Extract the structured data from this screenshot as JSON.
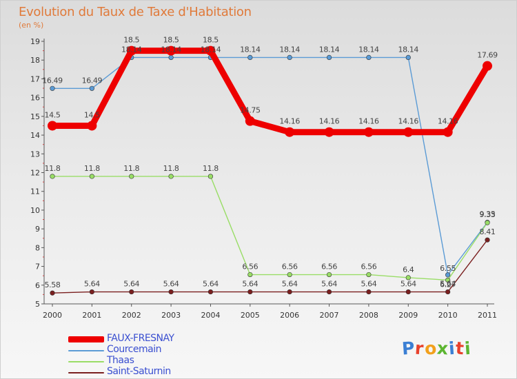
{
  "chart_data": {
    "type": "line",
    "title": "Evolution du Taux de Taxe d'Habitation",
    "subtitle": "(en %)",
    "xlabel": "",
    "ylabel": "",
    "ylim": [
      5,
      19
    ],
    "yticks": [
      "5",
      "6",
      "7",
      "8",
      "9",
      "10",
      "11",
      "12",
      "13",
      "14",
      "15",
      "16",
      "17",
      "18",
      "19"
    ],
    "x": [
      "2000",
      "2001",
      "2002",
      "2003",
      "2004",
      "2005",
      "2006",
      "2007",
      "2008",
      "2009",
      "2010",
      "2011"
    ],
    "grid": false,
    "legend_position": "bottom-left",
    "series": [
      {
        "name": "FAUX-FRESNAY",
        "color": "#ee0000",
        "values": [
          14.5,
          14.5,
          18.5,
          18.5,
          18.5,
          14.75,
          14.16,
          14.16,
          14.16,
          14.16,
          14.16,
          17.69
        ],
        "labels": [
          "14.5",
          "14.5",
          "18.5",
          "18.5",
          "18.5",
          "14.75",
          "14.16",
          "14.16",
          "14.16",
          "14.16",
          "14.16",
          "17.69"
        ]
      },
      {
        "name": "Courcemain",
        "color": "#5b9bd5",
        "values": [
          16.49,
          16.49,
          18.14,
          18.14,
          18.14,
          18.14,
          18.14,
          18.14,
          18.14,
          18.14,
          6.55,
          9.35
        ],
        "labels": [
          "16.49",
          "16.49",
          "18.14",
          "18.14",
          "18.14",
          "18.14",
          "18.14",
          "18.14",
          "18.14",
          "18.14",
          "6.55",
          "9.35"
        ]
      },
      {
        "name": "Thaas",
        "color": "#99dd66",
        "values": [
          11.8,
          11.8,
          11.8,
          11.8,
          11.8,
          6.56,
          6.56,
          6.56,
          6.56,
          6.4,
          6.27,
          9.33
        ],
        "labels": [
          "11.8",
          "11.8",
          "11.8",
          "11.8",
          "11.8",
          "6.56",
          "6.56",
          "6.56",
          "6.56",
          "6.4",
          "6.27",
          "9.33"
        ]
      },
      {
        "name": "Saint-Saturnin",
        "color": "#7a1f1f",
        "values": [
          5.58,
          5.64,
          5.64,
          5.64,
          5.64,
          5.64,
          5.64,
          5.64,
          5.64,
          5.64,
          5.64,
          8.41
        ],
        "labels": [
          "5.58",
          "5.64",
          "5.64",
          "5.64",
          "5.64",
          "5.64",
          "5.64",
          "5.64",
          "5.64",
          "5.64",
          "5.64",
          "8.41"
        ]
      }
    ]
  },
  "logo": {
    "text": "Proxiti",
    "colors": [
      "#3b7fd4",
      "#e8412c",
      "#f2a01c",
      "#5cb531",
      "#3b7fd4",
      "#e8412c",
      "#5cb531"
    ]
  }
}
